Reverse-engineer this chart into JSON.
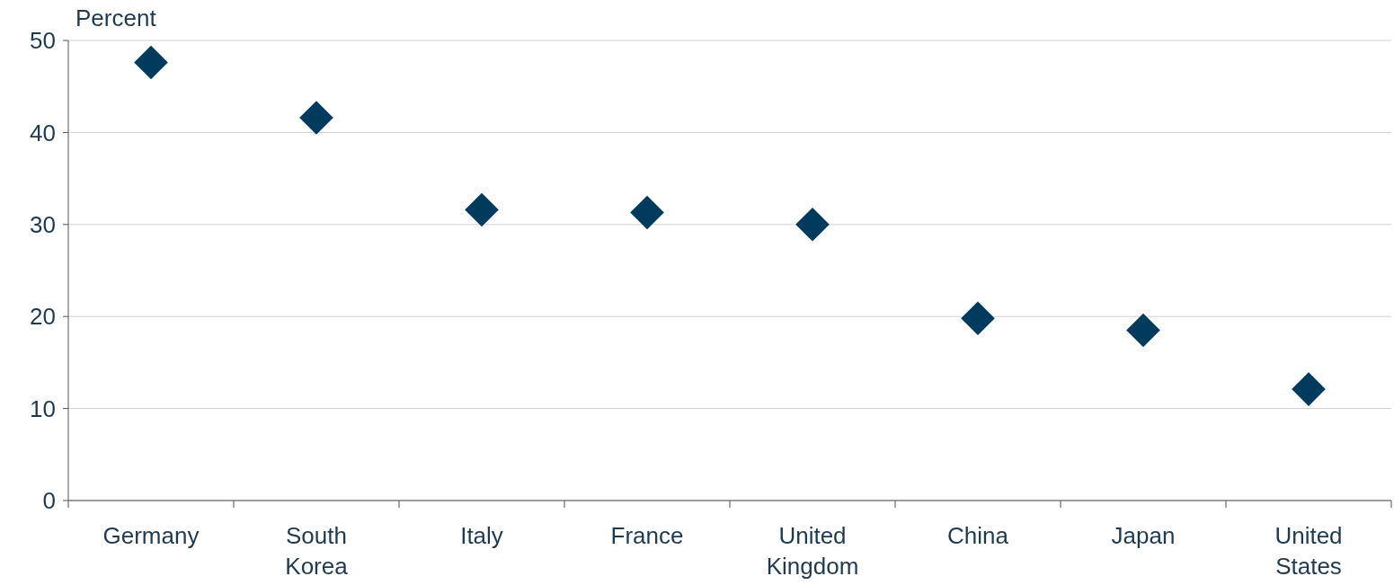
{
  "chart_data": {
    "type": "scatter",
    "ylabel": "Percent",
    "categories": [
      "Germany",
      "South Korea",
      "Italy",
      "France",
      "United Kingdom",
      "China",
      "Japan",
      "United States"
    ],
    "series": [
      {
        "color": "#003a5d",
        "values": [
          47.6,
          41.6,
          31.6,
          31.3,
          30.0,
          19.8,
          18.5,
          12.1
        ]
      }
    ],
    "ylim": [
      0,
      50
    ],
    "yticks": [
      0,
      10,
      20,
      30,
      40,
      50
    ],
    "grid": "y",
    "marker": "diamond"
  }
}
